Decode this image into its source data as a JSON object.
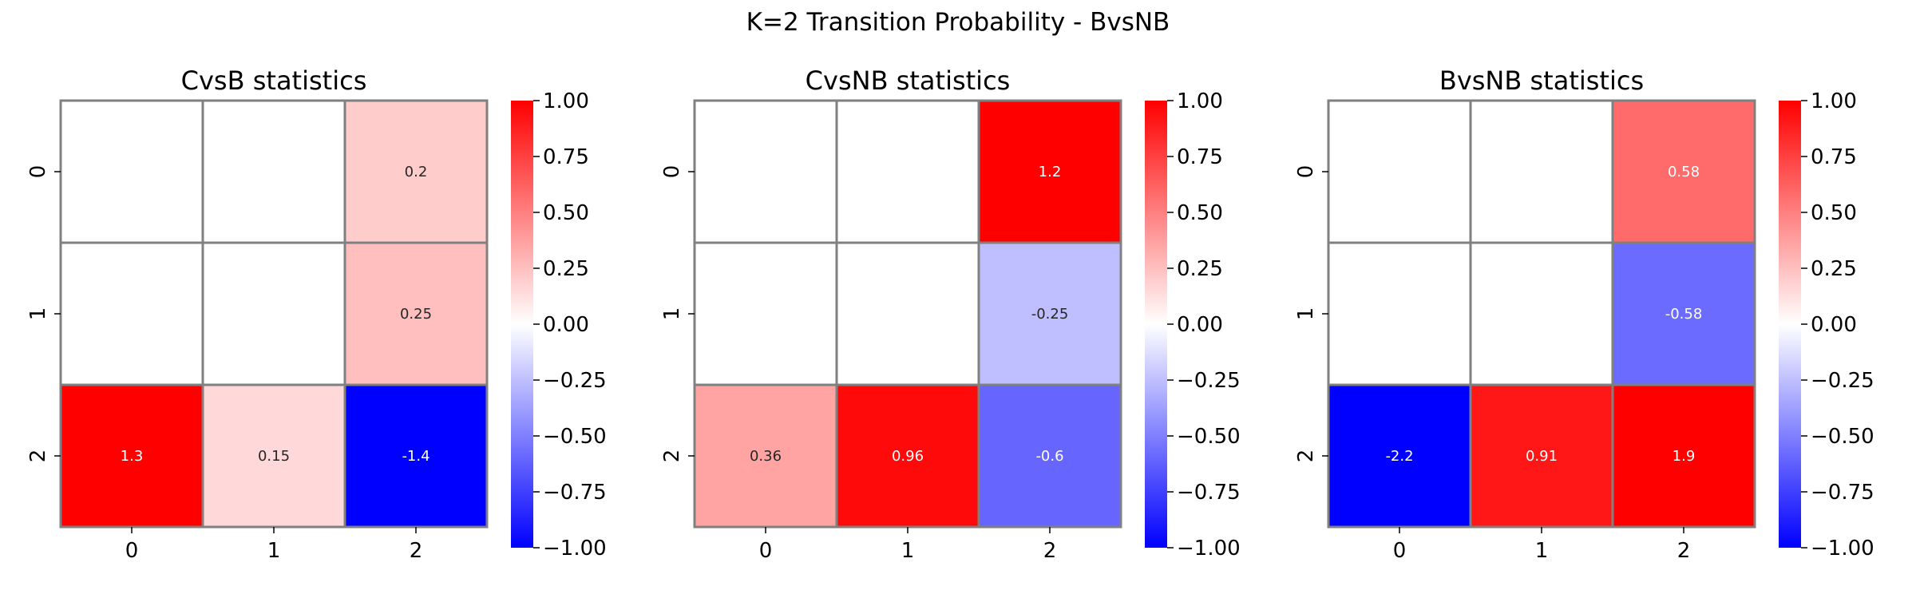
{
  "figure": {
    "suptitle": "K=2 Transition Probability - BvsNB"
  },
  "colors": {
    "neg": "#0000ff",
    "mid": "#ffffff",
    "pos": "#ff0000",
    "cell_border": "#808080",
    "dark_text": "#262626",
    "light_text": "#ffffff"
  },
  "chart_data": [
    {
      "type": "heatmap",
      "title": "CvsB statistics",
      "x_ticks": [
        "0",
        "1",
        "2"
      ],
      "y_ticks": [
        "0",
        "1",
        "2"
      ],
      "values": [
        [
          0,
          0,
          0.2
        ],
        [
          0,
          0,
          0.25
        ],
        [
          1.3,
          0.15,
          -1.4
        ]
      ],
      "labels": [
        [
          "",
          "",
          "0.2"
        ],
        [
          "",
          "",
          "0.25"
        ],
        [
          "1.3",
          "0.15",
          "-1.4"
        ]
      ],
      "vmin": -1,
      "vmax": 1,
      "colorbar_ticks": [
        "1.00",
        "0.75",
        "0.50",
        "0.25",
        "0.00",
        "−0.25",
        "−0.50",
        "−0.75",
        "−1.00"
      ]
    },
    {
      "type": "heatmap",
      "title": "CvsNB statistics",
      "x_ticks": [
        "0",
        "1",
        "2"
      ],
      "y_ticks": [
        "0",
        "1",
        "2"
      ],
      "values": [
        [
          0,
          0,
          1.2
        ],
        [
          0,
          0,
          -0.25
        ],
        [
          0.36,
          0.96,
          -0.6
        ]
      ],
      "labels": [
        [
          "",
          "",
          "1.2"
        ],
        [
          "",
          "",
          "-0.25"
        ],
        [
          "0.36",
          "0.96",
          "-0.6"
        ]
      ],
      "vmin": -1,
      "vmax": 1,
      "colorbar_ticks": [
        "1.00",
        "0.75",
        "0.50",
        "0.25",
        "0.00",
        "−0.25",
        "−0.50",
        "−0.75",
        "−1.00"
      ]
    },
    {
      "type": "heatmap",
      "title": "BvsNB statistics",
      "x_ticks": [
        "0",
        "1",
        "2"
      ],
      "y_ticks": [
        "0",
        "1",
        "2"
      ],
      "values": [
        [
          0,
          0,
          0.58
        ],
        [
          0,
          0,
          -0.58
        ],
        [
          -2.2,
          0.91,
          1.9
        ]
      ],
      "labels": [
        [
          "",
          "",
          "0.58"
        ],
        [
          "",
          "",
          "-0.58"
        ],
        [
          "-2.2",
          "0.91",
          "1.9"
        ]
      ],
      "vmin": -1,
      "vmax": 1,
      "colorbar_ticks": [
        "1.00",
        "0.75",
        "0.50",
        "0.25",
        "0.00",
        "−0.25",
        "−0.50",
        "−0.75",
        "−1.00"
      ]
    }
  ]
}
